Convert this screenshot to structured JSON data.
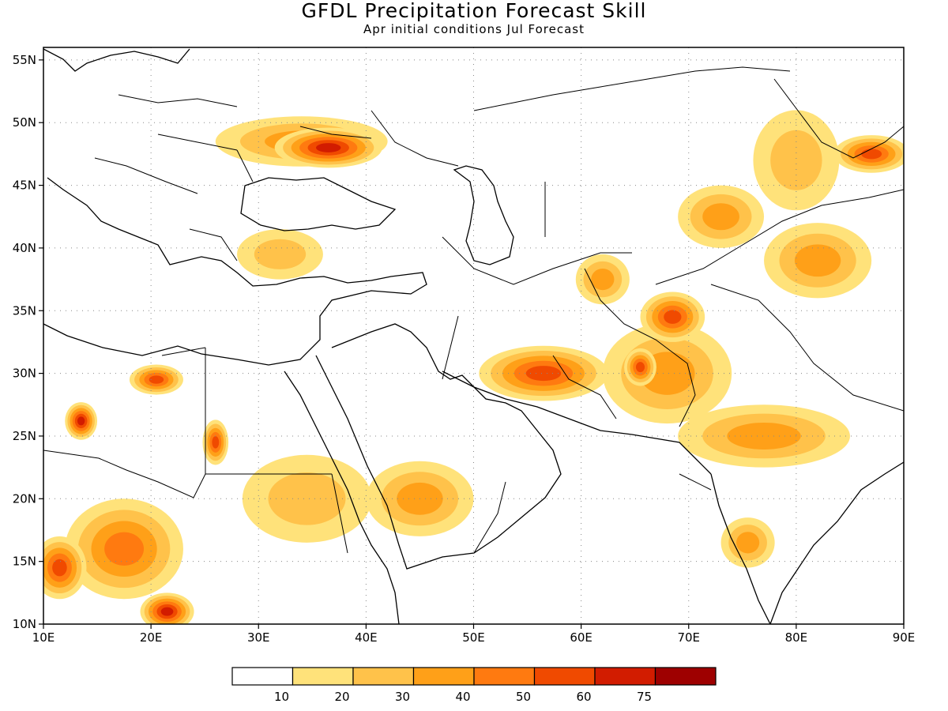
{
  "title": "GFDL Precipitation Forecast Skill",
  "subtitle": "Apr initial conditions  Jul Forecast",
  "axes": {
    "lon_ticks": [
      "10E",
      "20E",
      "30E",
      "40E",
      "50E",
      "60E",
      "70E",
      "80E",
      "90E"
    ],
    "lat_ticks": [
      "10N",
      "15N",
      "20N",
      "25N",
      "30N",
      "35N",
      "40N",
      "45N",
      "50N",
      "55N"
    ]
  },
  "colorbar": {
    "labels": [
      "10",
      "20",
      "30",
      "40",
      "50",
      "60",
      "75"
    ],
    "colors": [
      "#ffffff",
      "#ffe27a",
      "#ffc24a",
      "#ffa018",
      "#ff7a10",
      "#f04a00",
      "#d21c00",
      "#9e0000"
    ]
  },
  "chart_data": {
    "type": "heatmap",
    "title": "GFDL Precipitation Forecast Skill",
    "subtitle": "Apr initial conditions  Jul Forecast",
    "xlim": [
      10,
      90
    ],
    "ylim": [
      10,
      56
    ],
    "levels": [
      10,
      20,
      30,
      40,
      50,
      60,
      75
    ],
    "skill_areas": [
      {
        "lon": 13.5,
        "lat": 26.2,
        "rlon": 1.5,
        "rlat": 1.5,
        "level": 60
      },
      {
        "lon": 20.5,
        "lat": 29.5,
        "rlon": 2.5,
        "rlat": 1.2,
        "level": 50
      },
      {
        "lon": 26.0,
        "lat": 24.5,
        "rlon": 1.2,
        "rlat": 1.8,
        "level": 50
      },
      {
        "lon": 17.5,
        "lat": 16.0,
        "rlon": 5.5,
        "rlat": 4.0,
        "level": 40
      },
      {
        "lon": 11.5,
        "lat": 14.5,
        "rlon": 2.5,
        "rlat": 2.5,
        "level": 50
      },
      {
        "lon": 21.5,
        "lat": 11.0,
        "rlon": 2.5,
        "rlat": 1.5,
        "level": 60
      },
      {
        "lon": 36.5,
        "lat": 48.0,
        "rlon": 5.0,
        "rlat": 1.6,
        "level": 60
      },
      {
        "lon": 34.0,
        "lat": 48.5,
        "rlon": 8.0,
        "rlat": 2.0,
        "level": 30
      },
      {
        "lon": 87.0,
        "lat": 47.5,
        "rlon": 3.5,
        "rlat": 1.5,
        "level": 50
      },
      {
        "lon": 80.0,
        "lat": 47.0,
        "rlon": 4.0,
        "rlat": 4.0,
        "level": 20
      },
      {
        "lon": 56.5,
        "lat": 30.0,
        "rlon": 6.0,
        "rlat": 2.2,
        "level": 50
      },
      {
        "lon": 68.5,
        "lat": 34.5,
        "rlon": 3.0,
        "rlat": 2.0,
        "level": 50
      },
      {
        "lon": 65.5,
        "lat": 30.5,
        "rlon": 1.5,
        "rlat": 1.5,
        "level": 50
      },
      {
        "lon": 68.0,
        "lat": 30.0,
        "rlon": 6.0,
        "rlat": 4.0,
        "level": 30
      },
      {
        "lon": 77.0,
        "lat": 25.0,
        "rlon": 8.0,
        "rlat": 2.5,
        "level": 30
      },
      {
        "lon": 82.0,
        "lat": 39.0,
        "rlon": 5.0,
        "rlat": 3.0,
        "level": 30
      },
      {
        "lon": 73.0,
        "lat": 42.5,
        "rlon": 4.0,
        "rlat": 2.5,
        "level": 30
      },
      {
        "lon": 45.0,
        "lat": 20.0,
        "rlon": 5.0,
        "rlat": 3.0,
        "level": 30
      },
      {
        "lon": 34.5,
        "lat": 20.0,
        "rlon": 6.0,
        "rlat": 3.5,
        "level": 20
      },
      {
        "lon": 32.0,
        "lat": 39.5,
        "rlon": 4.0,
        "rlat": 2.0,
        "level": 20
      },
      {
        "lon": 62.0,
        "lat": 37.5,
        "rlon": 2.5,
        "rlat": 2.0,
        "level": 30
      },
      {
        "lon": 75.5,
        "lat": 16.5,
        "rlon": 2.5,
        "rlat": 2.0,
        "level": 30
      }
    ]
  }
}
